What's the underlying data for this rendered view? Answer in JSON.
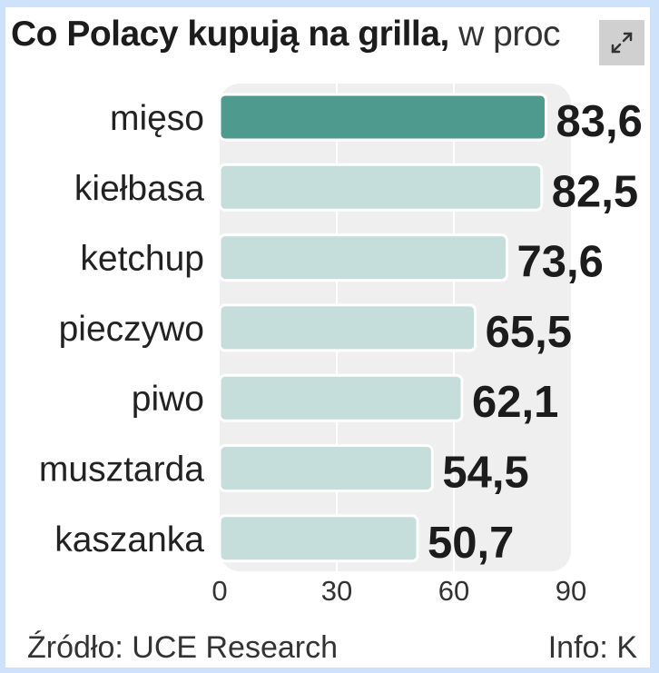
{
  "title": {
    "bold": "Co Polacy kupują na grilla,",
    "light": " w proc"
  },
  "expand_icon": "expand-icon",
  "colors": {
    "highlight": "#4e9a8e",
    "bar": "#c6dedb",
    "panel": "#efefef",
    "grid": "#ffffff"
  },
  "chart_data": {
    "type": "bar",
    "orientation": "horizontal",
    "categories": [
      "mięso",
      "kiełbasa",
      "ketchup",
      "pieczywo",
      "piwo",
      "musztarda",
      "kaszanka"
    ],
    "values": [
      83.6,
      82.5,
      73.6,
      65.5,
      62.1,
      54.5,
      50.7
    ],
    "value_labels": [
      "83,6",
      "82,5",
      "73,6",
      "65,5",
      "62,1",
      "54,5",
      "50,7"
    ],
    "highlight_index": 0,
    "xlim": [
      0,
      90
    ],
    "xticks": [
      0,
      30,
      60,
      90
    ],
    "grid": true
  },
  "footer": {
    "source": "Źródło: UCE Research",
    "info": "Info: K"
  }
}
